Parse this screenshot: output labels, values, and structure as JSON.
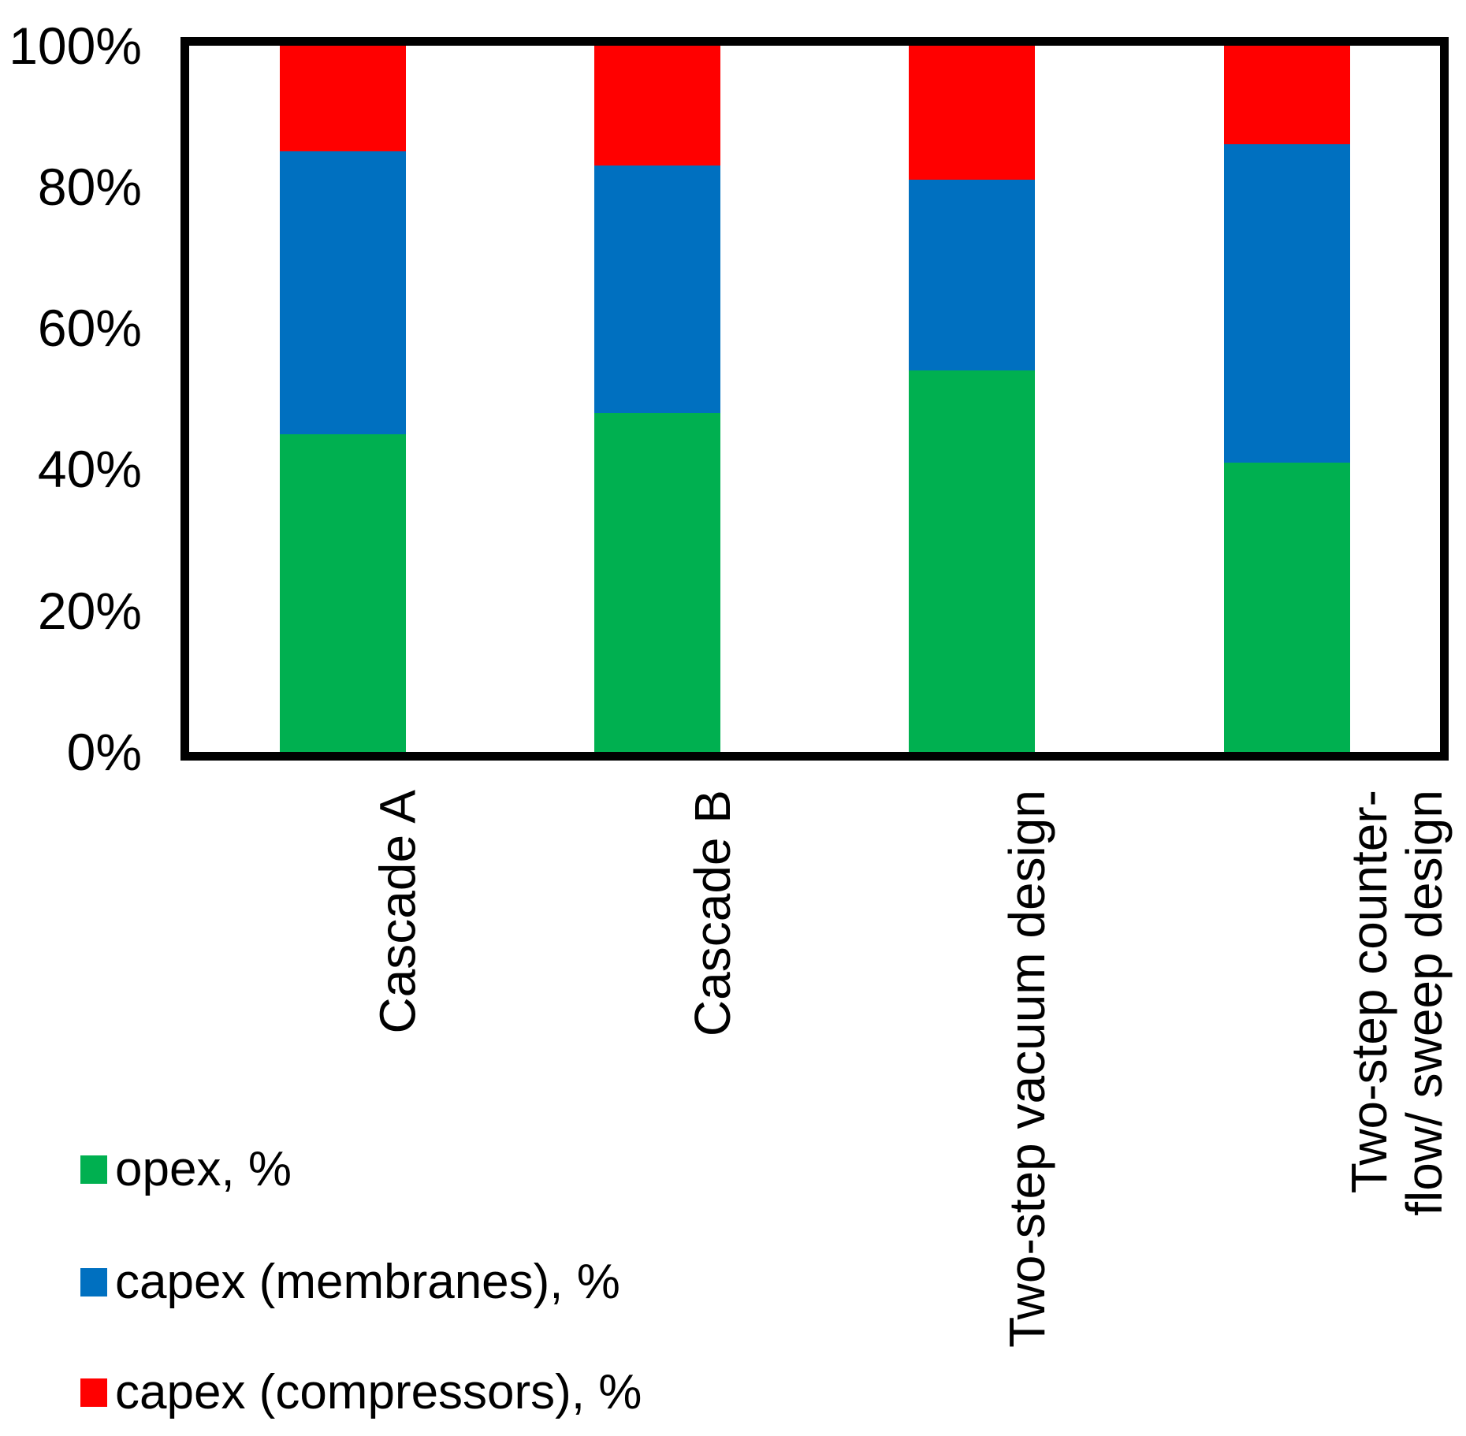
{
  "chart_data": {
    "type": "bar",
    "stacked": true,
    "title": "",
    "xlabel": "",
    "ylabel": "",
    "ylim": [
      0,
      100
    ],
    "grid": false,
    "legend_position": "bottom-left",
    "y_tick_labels": [
      "100%",
      "80%",
      "60%",
      "40%",
      "20%",
      "0%"
    ],
    "categories": [
      "Cascade A",
      "Cascade B",
      "Two-step vacuum design",
      "Two-step counter-\nflow/ sweep design"
    ],
    "series": [
      {
        "name": "opex, %",
        "color": "#00B050",
        "values": [
          45,
          48,
          54,
          41
        ]
      },
      {
        "name": "capex (membranes), %",
        "color": "#0070C0",
        "values": [
          40,
          35,
          27,
          45
        ]
      },
      {
        "name": "capex (compressors), %",
        "color": "#FF0000",
        "values": [
          15,
          17,
          19,
          14
        ]
      }
    ]
  }
}
